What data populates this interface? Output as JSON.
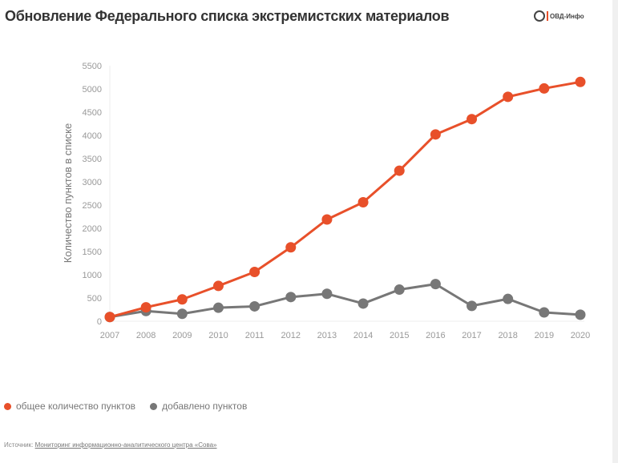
{
  "title": "Обновление Федерального списка экстремистских материалов",
  "logo_text": "ОВД-Инфо",
  "source": {
    "label": "Источник:",
    "link": "Мониторинг информационно-аналитического центра «Сова»"
  },
  "chart_data": {
    "type": "line",
    "title": "",
    "xlabel": "",
    "ylabel": "Количество пунктов в списке",
    "x": [
      "2007",
      "2008",
      "2009",
      "2010",
      "2011",
      "2012",
      "2013",
      "2014",
      "2015",
      "2016",
      "2017",
      "2018",
      "2019",
      "2020"
    ],
    "yticks": [
      0,
      500,
      1000,
      1500,
      2000,
      2500,
      3000,
      3500,
      4000,
      4500,
      5000,
      5500
    ],
    "ylim": [
      0,
      5500
    ],
    "grid": false,
    "legend_position": "bottom-left",
    "series": [
      {
        "name": "общее количество пунктов",
        "color": "#e8502a",
        "values": [
          90,
          300,
          470,
          760,
          1060,
          1590,
          2190,
          2560,
          3240,
          4020,
          4350,
          4830,
          5010,
          5150
        ]
      },
      {
        "name": "добавлено пунктов",
        "color": "#777777",
        "values": [
          90,
          220,
          160,
          290,
          320,
          520,
          590,
          380,
          680,
          800,
          330,
          480,
          190,
          140
        ]
      }
    ]
  }
}
